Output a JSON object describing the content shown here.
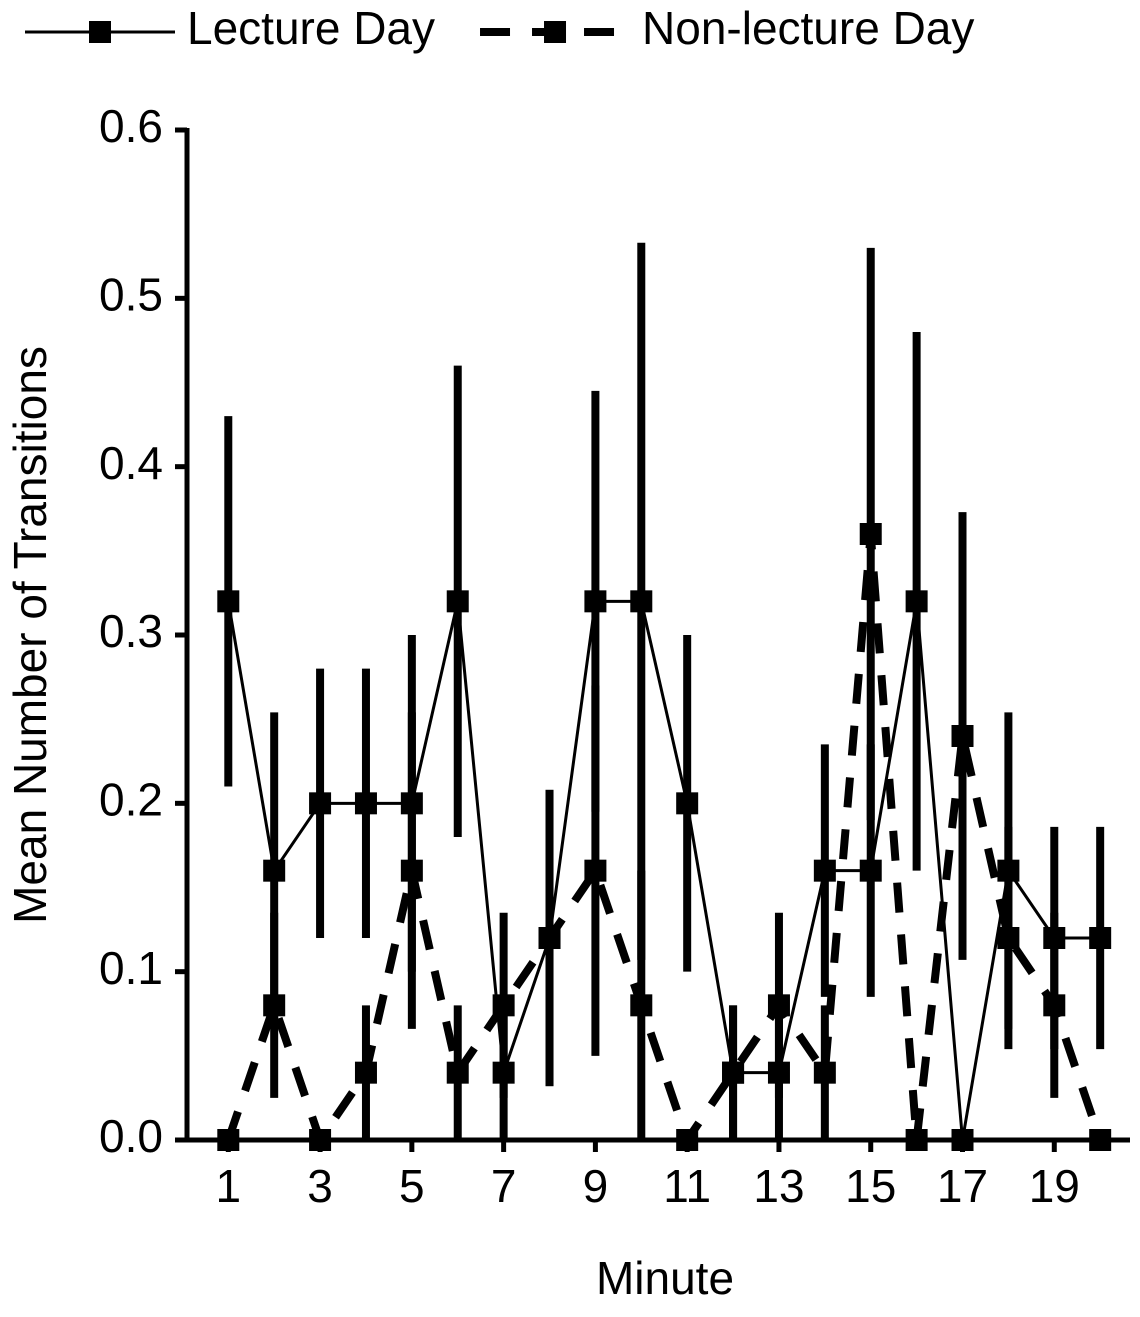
{
  "chart_data": {
    "type": "line",
    "x_label": "Minute",
    "y_label": "Mean Number of Transitions",
    "x": [
      1,
      2,
      3,
      4,
      5,
      6,
      7,
      8,
      9,
      10,
      11,
      12,
      13,
      14,
      15,
      16,
      17,
      18,
      19,
      20
    ],
    "series": [
      {
        "name": "Lecture Day",
        "color": "#000000",
        "line_style": "solid",
        "values": [
          0.32,
          0.16,
          0.2,
          0.2,
          0.2,
          0.32,
          0.04,
          0.12,
          0.32,
          0.32,
          0.2,
          0.04,
          0.04,
          0.16,
          0.16,
          0.32,
          0,
          0.16,
          0.12,
          0.12
        ],
        "errors": [
          0.11,
          0.094,
          0.08,
          0.08,
          0.1,
          0.14,
          0.04,
          0.088,
          0.125,
          0.213,
          0.1,
          0.04,
          0.04,
          0.075,
          0.075,
          0.16,
          0,
          0.094,
          0.066,
          0.066
        ]
      },
      {
        "name": "Non-lecture Day",
        "color": "#000000",
        "line_style": "dashed",
        "values": [
          0,
          0.08,
          0,
          0.04,
          0.16,
          0.04,
          0.08,
          0.12,
          0.16,
          0.08,
          0,
          0.04,
          0.08,
          0.04,
          0.36,
          0,
          0.24,
          0.12,
          0.08,
          0
        ],
        "errors": [
          0,
          0.055,
          0,
          0.04,
          0.094,
          0.04,
          0.055,
          0.088,
          0.11,
          0.08,
          0,
          0.04,
          0.055,
          0.04,
          0.17,
          0,
          0.133,
          0.066,
          0.055,
          0
        ]
      }
    ],
    "xlim": [
      0.1,
      20.65
    ],
    "xticks": [
      1,
      3,
      5,
      7,
      9,
      11,
      13,
      15,
      17,
      19
    ],
    "ylim": [
      0,
      0.6
    ],
    "yticks": [
      {
        "value": 0,
        "label": "0.0"
      },
      0.1,
      0.2,
      0.3,
      0.4,
      0.5,
      0.6
    ],
    "legend": "top"
  }
}
